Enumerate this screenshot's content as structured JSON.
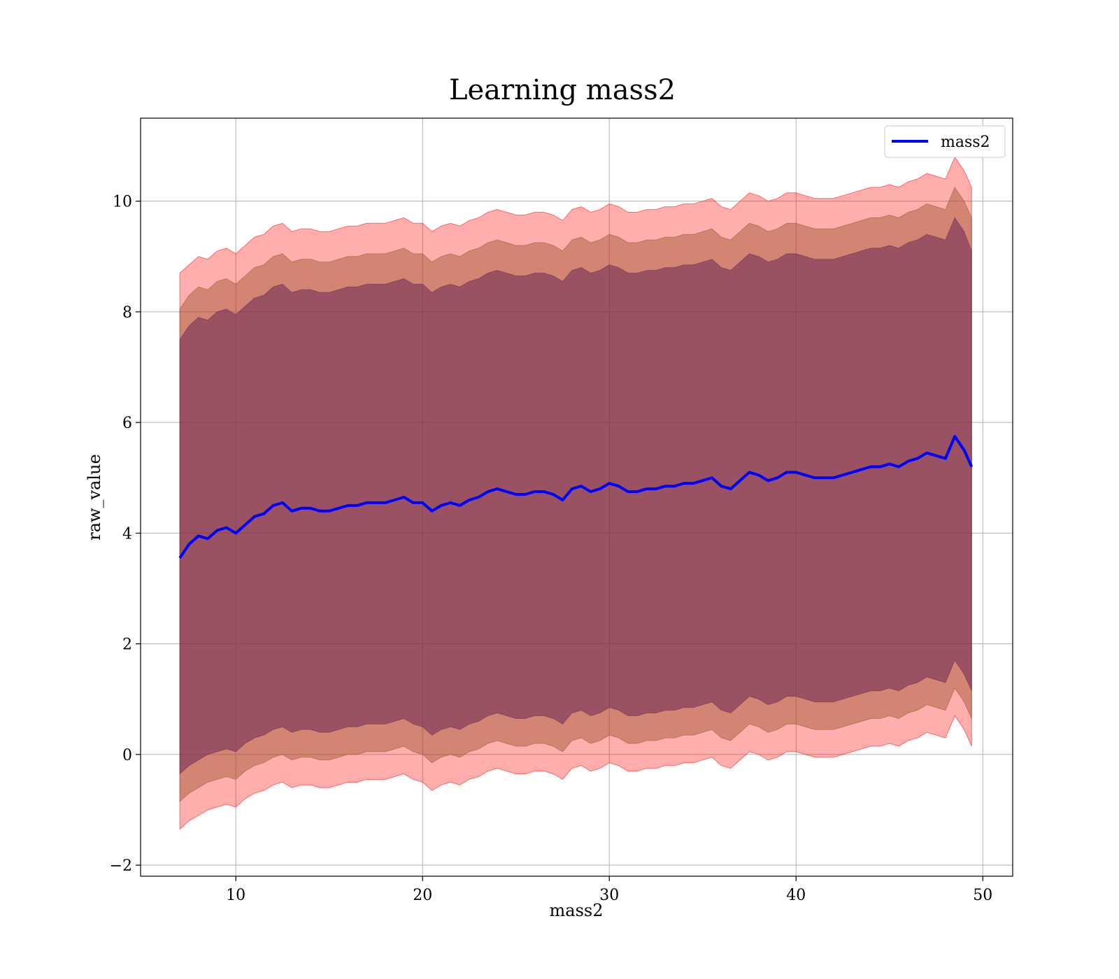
{
  "chart_data": {
    "type": "line",
    "title": "Learning mass2",
    "xlabel": "mass2",
    "ylabel": "raw_value",
    "xlim": [
      4.9,
      51.6
    ],
    "ylim": [
      -2.2,
      11.5
    ],
    "xticks": [
      10,
      20,
      30,
      40,
      50
    ],
    "yticks": [
      -2,
      0,
      2,
      4,
      6,
      8,
      10
    ],
    "grid": true,
    "legend_position": "top-right",
    "x": [
      7.0,
      7.5,
      8.0,
      8.5,
      9.0,
      9.5,
      10.0,
      10.5,
      11.0,
      11.5,
      12.0,
      12.5,
      13.0,
      13.5,
      14.0,
      14.5,
      15.0,
      15.5,
      16.0,
      16.5,
      17.0,
      17.5,
      18.0,
      18.5,
      19.0,
      19.5,
      20.0,
      20.5,
      21.0,
      21.5,
      22.0,
      22.5,
      23.0,
      23.5,
      24.0,
      24.5,
      25.0,
      25.5,
      26.0,
      26.5,
      27.0,
      27.5,
      28.0,
      28.5,
      29.0,
      29.5,
      30.0,
      30.5,
      31.0,
      31.5,
      32.0,
      32.5,
      33.0,
      33.5,
      34.0,
      34.5,
      35.0,
      35.5,
      36.0,
      36.5,
      37.0,
      37.5,
      38.0,
      38.5,
      39.0,
      39.5,
      40.0,
      40.5,
      41.0,
      41.5,
      42.0,
      42.5,
      43.0,
      43.5,
      44.0,
      44.5,
      45.0,
      45.5,
      46.0,
      46.5,
      47.0,
      47.5,
      48.0,
      48.5,
      49.0,
      49.4
    ],
    "series": [
      {
        "name": "mass2",
        "color": "#0000ff",
        "values": [
          3.55,
          3.8,
          3.95,
          3.9,
          4.05,
          4.1,
          4.0,
          4.15,
          4.3,
          4.35,
          4.5,
          4.55,
          4.4,
          4.45,
          4.45,
          4.4,
          4.4,
          4.45,
          4.5,
          4.5,
          4.55,
          4.55,
          4.55,
          4.6,
          4.65,
          4.55,
          4.55,
          4.4,
          4.5,
          4.55,
          4.5,
          4.6,
          4.65,
          4.75,
          4.8,
          4.75,
          4.7,
          4.7,
          4.75,
          4.75,
          4.7,
          4.6,
          4.8,
          4.85,
          4.75,
          4.8,
          4.9,
          4.85,
          4.75,
          4.75,
          4.8,
          4.8,
          4.85,
          4.85,
          4.9,
          4.9,
          4.95,
          5.0,
          4.85,
          4.8,
          4.95,
          5.1,
          5.05,
          4.95,
          5.0,
          5.1,
          5.1,
          5.05,
          5.0,
          5.0,
          5.0,
          5.05,
          5.1,
          5.15,
          5.2,
          5.2,
          5.25,
          5.2,
          5.3,
          5.35,
          5.45,
          5.4,
          5.35,
          5.75,
          5.5,
          5.2
        ]
      }
    ],
    "bands": [
      {
        "color": "#ff0000",
        "opacity": 0.32,
        "lower": [
          -1.35,
          -1.2,
          -1.1,
          -1.0,
          -0.95,
          -0.9,
          -0.95,
          -0.8,
          -0.7,
          -0.65,
          -0.55,
          -0.5,
          -0.6,
          -0.55,
          -0.55,
          -0.6,
          -0.6,
          -0.55,
          -0.5,
          -0.5,
          -0.45,
          -0.45,
          -0.45,
          -0.4,
          -0.35,
          -0.45,
          -0.5,
          -0.65,
          -0.55,
          -0.5,
          -0.55,
          -0.45,
          -0.4,
          -0.3,
          -0.25,
          -0.3,
          -0.35,
          -0.35,
          -0.3,
          -0.3,
          -0.35,
          -0.45,
          -0.25,
          -0.2,
          -0.3,
          -0.25,
          -0.15,
          -0.2,
          -0.3,
          -0.3,
          -0.25,
          -0.25,
          -0.2,
          -0.2,
          -0.15,
          -0.15,
          -0.1,
          -0.05,
          -0.2,
          -0.25,
          -0.1,
          0.05,
          0.0,
          -0.1,
          -0.05,
          0.05,
          0.05,
          0.0,
          -0.05,
          -0.05,
          -0.05,
          0.0,
          0.05,
          0.1,
          0.15,
          0.15,
          0.2,
          0.15,
          0.25,
          0.3,
          0.4,
          0.35,
          0.3,
          0.7,
          0.45,
          0.15
        ],
        "upper": [
          8.7,
          8.85,
          9.0,
          8.95,
          9.1,
          9.15,
          9.05,
          9.2,
          9.35,
          9.4,
          9.55,
          9.6,
          9.45,
          9.5,
          9.5,
          9.45,
          9.45,
          9.5,
          9.55,
          9.55,
          9.6,
          9.6,
          9.6,
          9.65,
          9.7,
          9.6,
          9.6,
          9.45,
          9.55,
          9.6,
          9.55,
          9.65,
          9.7,
          9.8,
          9.85,
          9.8,
          9.75,
          9.75,
          9.8,
          9.8,
          9.75,
          9.65,
          9.85,
          9.9,
          9.8,
          9.85,
          9.95,
          9.9,
          9.8,
          9.8,
          9.85,
          9.85,
          9.9,
          9.9,
          9.95,
          9.95,
          10.0,
          10.05,
          9.9,
          9.85,
          10.0,
          10.15,
          10.1,
          10.0,
          10.05,
          10.15,
          10.15,
          10.1,
          10.05,
          10.05,
          10.05,
          10.1,
          10.15,
          10.2,
          10.25,
          10.25,
          10.3,
          10.25,
          10.35,
          10.4,
          10.5,
          10.45,
          10.4,
          10.8,
          10.55,
          10.25
        ]
      },
      {
        "color": "#a0522d",
        "opacity": 0.45,
        "lower": [
          -0.85,
          -0.7,
          -0.6,
          -0.5,
          -0.45,
          -0.4,
          -0.45,
          -0.3,
          -0.2,
          -0.15,
          -0.05,
          0.0,
          -0.1,
          -0.05,
          -0.05,
          -0.1,
          -0.1,
          -0.05,
          0.0,
          0.0,
          0.05,
          0.05,
          0.05,
          0.1,
          0.15,
          0.05,
          0.0,
          -0.15,
          -0.05,
          0.0,
          -0.05,
          0.05,
          0.1,
          0.2,
          0.25,
          0.2,
          0.15,
          0.15,
          0.2,
          0.2,
          0.15,
          0.05,
          0.25,
          0.3,
          0.2,
          0.25,
          0.35,
          0.3,
          0.2,
          0.2,
          0.25,
          0.25,
          0.3,
          0.3,
          0.35,
          0.35,
          0.4,
          0.45,
          0.3,
          0.25,
          0.4,
          0.55,
          0.5,
          0.4,
          0.45,
          0.55,
          0.55,
          0.5,
          0.45,
          0.45,
          0.45,
          0.5,
          0.55,
          0.6,
          0.65,
          0.65,
          0.7,
          0.65,
          0.75,
          0.8,
          0.9,
          0.85,
          0.8,
          1.2,
          0.95,
          0.65
        ],
        "upper": [
          8.05,
          8.3,
          8.45,
          8.4,
          8.55,
          8.6,
          8.5,
          8.65,
          8.8,
          8.85,
          9.0,
          9.05,
          8.9,
          8.95,
          8.95,
          8.9,
          8.9,
          8.95,
          9.0,
          9.0,
          9.05,
          9.05,
          9.05,
          9.1,
          9.15,
          9.05,
          9.05,
          8.9,
          9.0,
          9.05,
          9.0,
          9.1,
          9.15,
          9.25,
          9.3,
          9.25,
          9.2,
          9.2,
          9.25,
          9.25,
          9.2,
          9.1,
          9.3,
          9.35,
          9.25,
          9.3,
          9.4,
          9.35,
          9.25,
          9.25,
          9.3,
          9.3,
          9.35,
          9.35,
          9.4,
          9.4,
          9.45,
          9.5,
          9.35,
          9.3,
          9.45,
          9.6,
          9.55,
          9.45,
          9.5,
          9.6,
          9.6,
          9.55,
          9.5,
          9.5,
          9.5,
          9.55,
          9.6,
          9.65,
          9.7,
          9.7,
          9.75,
          9.7,
          9.8,
          9.85,
          9.95,
          9.9,
          9.85,
          10.25,
          10.0,
          9.7
        ]
      },
      {
        "color": "#6a2a54",
        "opacity": 0.55,
        "lower": [
          -0.35,
          -0.2,
          -0.1,
          0.0,
          0.05,
          0.1,
          0.05,
          0.2,
          0.3,
          0.35,
          0.45,
          0.5,
          0.4,
          0.45,
          0.45,
          0.4,
          0.4,
          0.45,
          0.5,
          0.5,
          0.55,
          0.55,
          0.55,
          0.6,
          0.65,
          0.55,
          0.5,
          0.35,
          0.45,
          0.5,
          0.45,
          0.55,
          0.6,
          0.7,
          0.75,
          0.7,
          0.65,
          0.65,
          0.7,
          0.7,
          0.65,
          0.55,
          0.75,
          0.8,
          0.7,
          0.75,
          0.85,
          0.8,
          0.7,
          0.7,
          0.75,
          0.75,
          0.8,
          0.8,
          0.85,
          0.85,
          0.9,
          0.95,
          0.8,
          0.75,
          0.9,
          1.05,
          1.0,
          0.9,
          0.95,
          1.05,
          1.05,
          1.0,
          0.95,
          0.95,
          0.95,
          1.0,
          1.05,
          1.1,
          1.15,
          1.15,
          1.2,
          1.15,
          1.25,
          1.3,
          1.4,
          1.35,
          1.3,
          1.7,
          1.45,
          1.15
        ],
        "upper": [
          7.5,
          7.75,
          7.9,
          7.85,
          8.0,
          8.05,
          7.95,
          8.1,
          8.25,
          8.3,
          8.45,
          8.5,
          8.35,
          8.4,
          8.4,
          8.35,
          8.35,
          8.4,
          8.45,
          8.45,
          8.5,
          8.5,
          8.5,
          8.55,
          8.6,
          8.5,
          8.5,
          8.35,
          8.45,
          8.5,
          8.45,
          8.55,
          8.6,
          8.7,
          8.75,
          8.7,
          8.65,
          8.65,
          8.7,
          8.7,
          8.65,
          8.55,
          8.75,
          8.8,
          8.7,
          8.75,
          8.85,
          8.8,
          8.7,
          8.7,
          8.75,
          8.75,
          8.8,
          8.8,
          8.85,
          8.85,
          8.9,
          8.95,
          8.8,
          8.75,
          8.9,
          9.05,
          9.0,
          8.9,
          8.95,
          9.05,
          9.05,
          9.0,
          8.95,
          8.95,
          8.95,
          9.0,
          9.05,
          9.1,
          9.15,
          9.15,
          9.2,
          9.15,
          9.25,
          9.3,
          9.4,
          9.35,
          9.3,
          9.7,
          9.45,
          9.1
        ]
      }
    ]
  }
}
